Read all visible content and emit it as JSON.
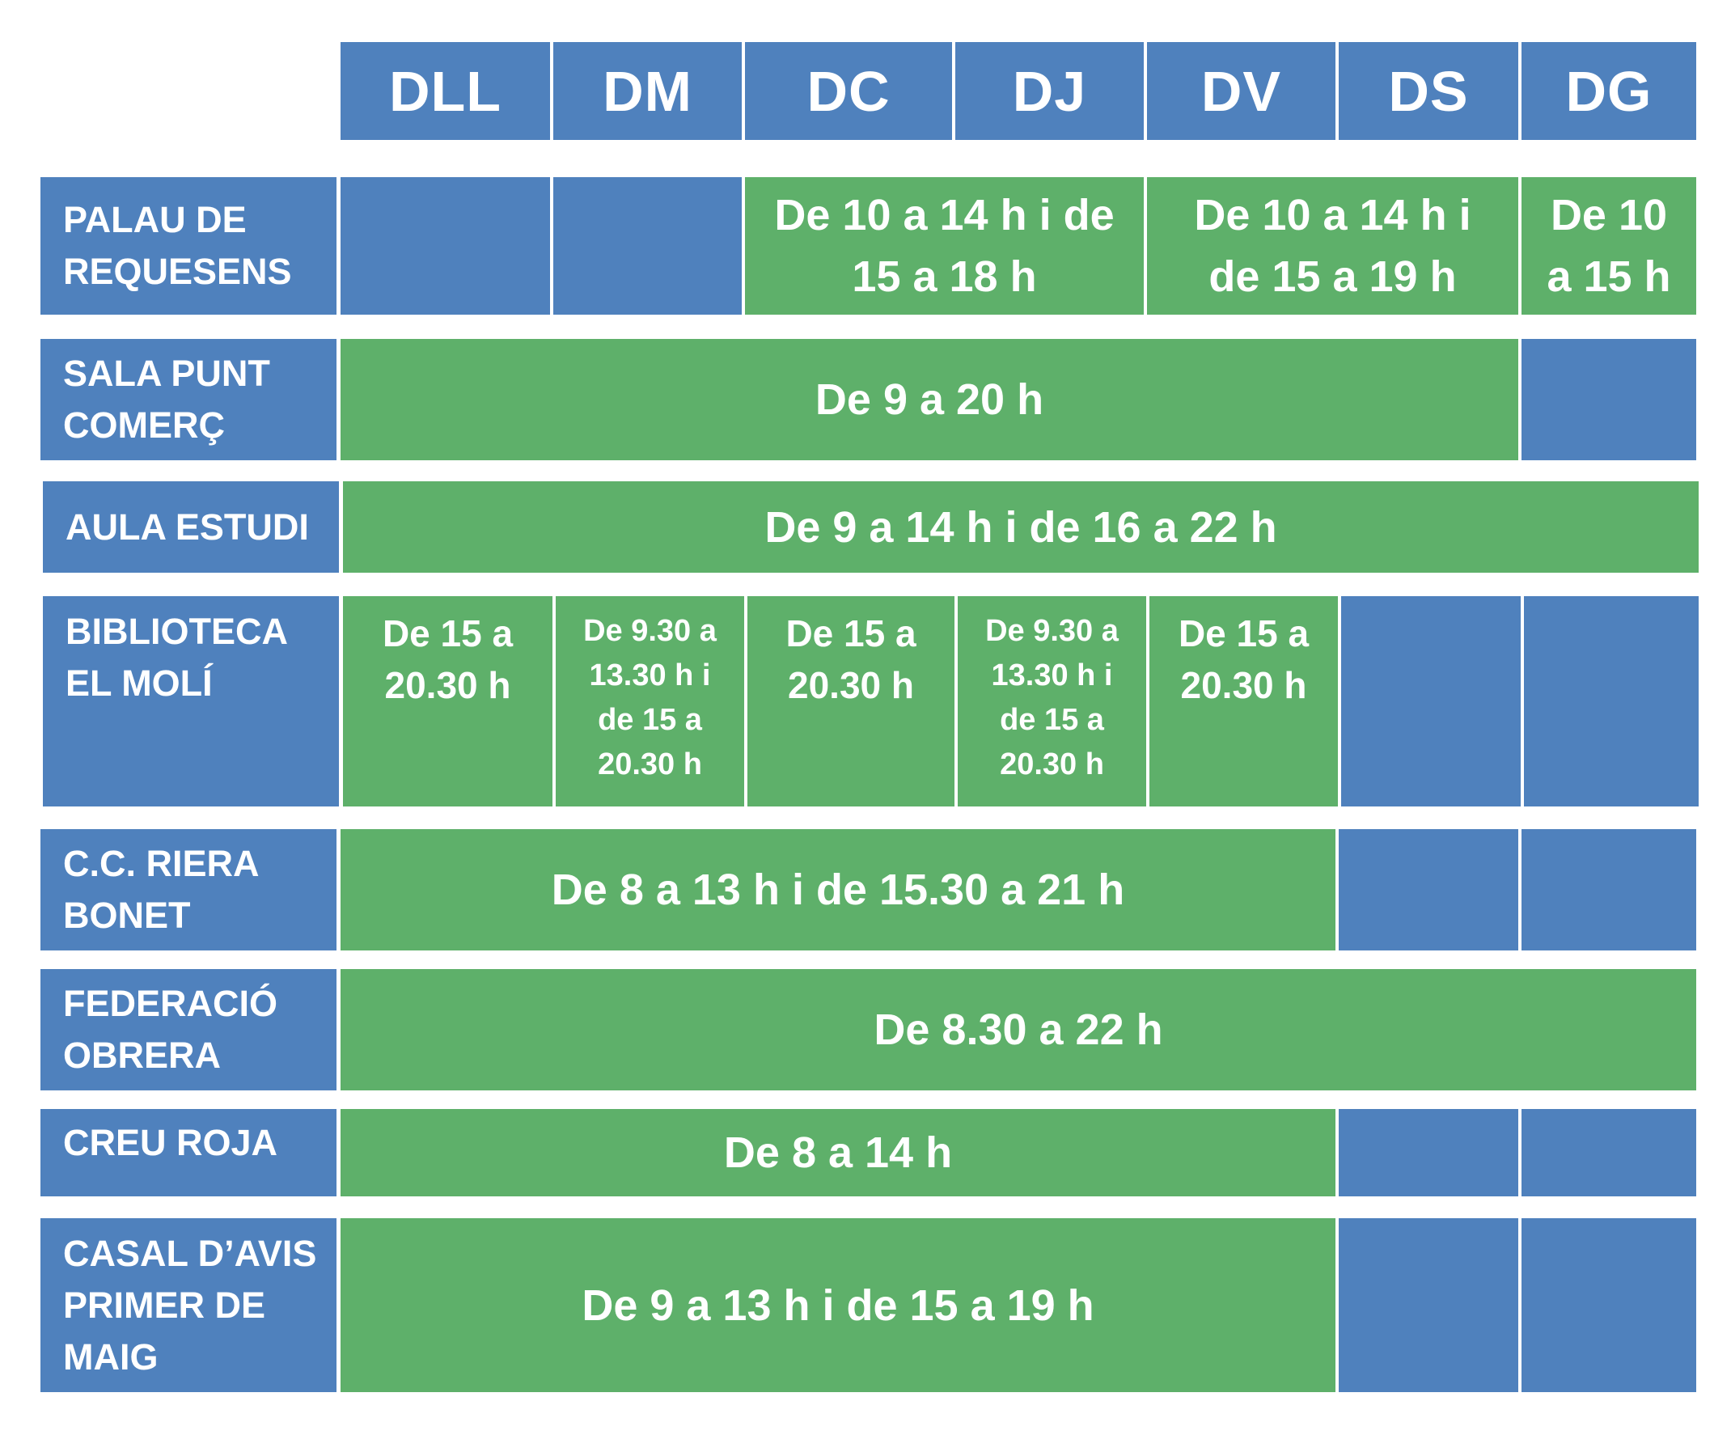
{
  "days": [
    "DLL",
    "DM",
    "DC",
    "DJ",
    "DV",
    "DS",
    "DG"
  ],
  "venues": {
    "palau_requesens": {
      "name": "PALAU DE\nREQUESENS",
      "dc_dj": "De 10 a 14 h i de 15 a 18 h",
      "dv_ds": "De 10 a 14 h i de 15 a 19 h",
      "dg": "De 10 a 15 h"
    },
    "sala_punt_comerc": {
      "name": "SALA PUNT\nCOMERÇ",
      "dll_ds": "De 9 a 20 h"
    },
    "aula_estudi": {
      "name": "AULA ESTUDI",
      "dll_dg": "De 9 a 14 h i de 16 a 22 h"
    },
    "biblioteca_el_moli": {
      "name": "BIBLIOTECA\nEL MOLÍ",
      "dll": "De 15 a 20.30 h",
      "dm": "De 9.30 a 13.30 h i de 15 a 20.30 h",
      "dc": "De 15 a 20.30 h",
      "dj": "De 9.30 a 13.30 h i de 15 a 20.30 h",
      "dv": "De 15 a 20.30 h"
    },
    "cc_riera_bonet": {
      "name": "C.C. RIERA\nBONET",
      "dll_dv": "De 8 a 13 h i de 15.30 a 21 h"
    },
    "federacio_obrera": {
      "name": "FEDERACIÓ\nOBRERA",
      "dll_dg": "De 8.30 a 22 h"
    },
    "creu_roja": {
      "name": "CREU ROJA",
      "dll_dv": "De 8 a 14 h"
    },
    "casal_avis": {
      "name": "CASAL D’AVIS\nPRIMER DE\nMAIG",
      "dll_dv": "De 9 a 13 h i de 15 a 19 h"
    }
  },
  "colors": {
    "closed": "#4f81bd",
    "open": "#5eb06a"
  }
}
